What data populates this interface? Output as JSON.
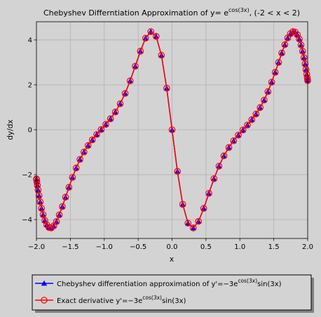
{
  "chart_data": {
    "type": "line",
    "title": [
      "Chebyshev Differntiation Approximation of y= e",
      "cos(3x)",
      ", (-2 < x < 2)"
    ],
    "xlabel": "x",
    "ylabel": "dy/dx",
    "x": [
      -2,
      -1.998,
      -1.994,
      -1.986,
      -1.975,
      -1.962,
      -1.945,
      -1.925,
      -1.902,
      -1.876,
      -1.848,
      -1.816,
      -1.782,
      -1.745,
      -1.705,
      -1.663,
      -1.618,
      -1.571,
      -1.521,
      -1.469,
      -1.414,
      -1.358,
      -1.299,
      -1.238,
      -1.176,
      -1.111,
      -1.045,
      -0.977,
      -0.908,
      -0.837,
      -0.765,
      -0.692,
      -0.618,
      -0.543,
      -0.467,
      -0.39,
      -0.313,
      -0.235,
      -0.157,
      -0.079,
      0,
      0.079,
      0.157,
      0.235,
      0.313,
      0.39,
      0.467,
      0.543,
      0.618,
      0.692,
      0.765,
      0.837,
      0.908,
      0.977,
      1.045,
      1.111,
      1.176,
      1.238,
      1.299,
      1.358,
      1.414,
      1.469,
      1.521,
      1.571,
      1.618,
      1.663,
      1.705,
      1.745,
      1.782,
      1.816,
      1.848,
      1.876,
      1.902,
      1.925,
      1.945,
      1.962,
      1.975,
      1.986,
      1.994,
      1.998,
      2
    ],
    "series": [
      {
        "name": [
          "Chebyshev differentiation approximation of y'=−3e",
          "cos(3x)",
          "sin(3x)"
        ],
        "color": "#0000ff",
        "marker": "triangle",
        "values": [
          -2.19,
          -2.22,
          -2.32,
          -2.47,
          -2.68,
          -2.93,
          -3.21,
          -3.5,
          -3.78,
          -4.04,
          -4.23,
          -4.35,
          -4.37,
          -4.28,
          -4.09,
          -3.79,
          -3.42,
          -3.0,
          -2.56,
          -2.12,
          -1.7,
          -1.32,
          -0.99,
          -0.7,
          -0.45,
          -0.21,
          0.01,
          0.24,
          0.49,
          0.79,
          1.16,
          1.62,
          2.18,
          2.83,
          3.5,
          4.08,
          4.37,
          4.16,
          3.32,
          1.85,
          0,
          -1.85,
          -3.32,
          -4.16,
          -4.37,
          -4.08,
          -3.5,
          -2.83,
          -2.18,
          -1.62,
          -1.16,
          -0.79,
          -0.49,
          -0.24,
          -0.01,
          0.21,
          0.45,
          0.7,
          0.99,
          1.32,
          1.7,
          2.12,
          2.56,
          3.0,
          3.42,
          3.79,
          4.09,
          4.28,
          4.37,
          4.35,
          4.23,
          4.04,
          3.78,
          3.5,
          3.21,
          2.93,
          2.68,
          2.47,
          2.32,
          2.22,
          2.19
        ]
      },
      {
        "name": [
          "Exact derivative y'=−3e",
          "cos(3x)",
          "sin(3x)"
        ],
        "color": "#ff0000",
        "marker": "circle",
        "values": [
          -2.19,
          -2.22,
          -2.32,
          -2.47,
          -2.68,
          -2.93,
          -3.21,
          -3.5,
          -3.78,
          -4.04,
          -4.23,
          -4.35,
          -4.37,
          -4.28,
          -4.09,
          -3.79,
          -3.42,
          -3.0,
          -2.56,
          -2.12,
          -1.7,
          -1.32,
          -0.99,
          -0.7,
          -0.45,
          -0.21,
          0.01,
          0.24,
          0.49,
          0.79,
          1.16,
          1.62,
          2.18,
          2.83,
          3.5,
          4.08,
          4.37,
          4.16,
          3.32,
          1.85,
          0,
          -1.85,
          -3.32,
          -4.16,
          -4.37,
          -4.08,
          -3.5,
          -2.83,
          -2.18,
          -1.62,
          -1.16,
          -0.79,
          -0.49,
          -0.24,
          -0.01,
          0.21,
          0.45,
          0.7,
          0.99,
          1.32,
          1.7,
          2.12,
          2.56,
          3.0,
          3.42,
          3.79,
          4.09,
          4.28,
          4.37,
          4.35,
          4.23,
          4.04,
          3.78,
          3.5,
          3.21,
          2.93,
          2.68,
          2.47,
          2.32,
          2.22,
          2.19
        ]
      }
    ],
    "xlim": [
      -2,
      2
    ],
    "ylim": [
      -4.84,
      4.81
    ],
    "xticks": [
      {
        "value": -2,
        "label": "−2.0"
      },
      {
        "value": -1.5,
        "label": "−1.5"
      },
      {
        "value": -1,
        "label": "−1.0"
      },
      {
        "value": -0.5,
        "label": "−0.5"
      },
      {
        "value": 0,
        "label": "0.0"
      },
      {
        "value": 0.5,
        "label": "0.5"
      },
      {
        "value": 1,
        "label": "1.0"
      },
      {
        "value": 1.5,
        "label": "1.5"
      },
      {
        "value": 2,
        "label": "2.0"
      }
    ],
    "yticks": [
      {
        "value": -4,
        "label": "−4"
      },
      {
        "value": -2,
        "label": "−2"
      },
      0,
      2,
      4
    ],
    "grid": true,
    "legend": "bottom"
  }
}
